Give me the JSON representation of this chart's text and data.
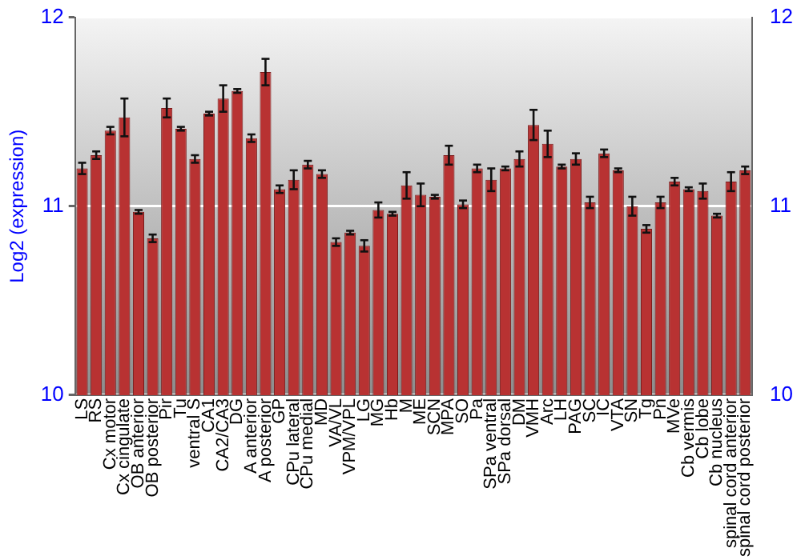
{
  "chart_data": {
    "type": "bar",
    "ylabel": "Log2 (expression)",
    "categories": [
      "LS",
      "RS",
      "Cx motor",
      "Cx cingulate",
      "OB anterior",
      "OB posterior",
      "Pir",
      "Tu",
      "ventral S",
      "CA1",
      "CA2/CA3",
      "DG",
      "A anterior",
      "A posterior",
      "GP",
      "CPu lateral",
      "CPu medial",
      "MD",
      "VA/VL",
      "VPM/VPL",
      "LG",
      "MG",
      "Hb",
      "M",
      "ME",
      "SCN",
      "MPA",
      "SO",
      "Pa",
      "SPa ventral",
      "SPa dorsal",
      "DM",
      "VMH",
      "Arc",
      "LH",
      "PAG",
      "SC",
      "IC",
      "VTA",
      "SN",
      "Tg",
      "Pn",
      "MVe",
      "Cb vermis",
      "Cb lobe",
      "Cb nucleus",
      "spinal cord anterior",
      "spinal cord posterior"
    ],
    "values": [
      11.2,
      11.27,
      11.4,
      11.47,
      10.97,
      10.83,
      11.52,
      11.41,
      11.25,
      11.49,
      11.57,
      11.61,
      11.36,
      11.71,
      11.09,
      11.14,
      11.22,
      11.17,
      10.81,
      10.86,
      10.79,
      10.98,
      10.96,
      11.11,
      11.06,
      11.05,
      11.27,
      11.01,
      11.2,
      11.14,
      11.2,
      11.25,
      11.43,
      11.33,
      11.21,
      11.25,
      11.02,
      11.28,
      11.19,
      11.0,
      10.88,
      11.02,
      11.13,
      11.09,
      11.08,
      10.95,
      11.13,
      11.19
    ],
    "errors": [
      0.03,
      0.02,
      0.02,
      0.1,
      0.01,
      0.02,
      0.05,
      0.01,
      0.02,
      0.01,
      0.07,
      0.01,
      0.02,
      0.07,
      0.02,
      0.05,
      0.02,
      0.02,
      0.02,
      0.01,
      0.03,
      0.04,
      0.01,
      0.07,
      0.06,
      0.01,
      0.05,
      0.02,
      0.02,
      0.06,
      0.01,
      0.04,
      0.08,
      0.07,
      0.01,
      0.03,
      0.03,
      0.02,
      0.01,
      0.05,
      0.02,
      0.03,
      0.02,
      0.01,
      0.04,
      0.01,
      0.05,
      0.02
    ],
    "color": "#b83232",
    "ylim": [
      10,
      12
    ],
    "yticks": [
      10,
      11,
      12
    ],
    "y2lim": [
      10,
      12
    ],
    "y2ticks": [
      10,
      11,
      12
    ],
    "grid": "y"
  }
}
